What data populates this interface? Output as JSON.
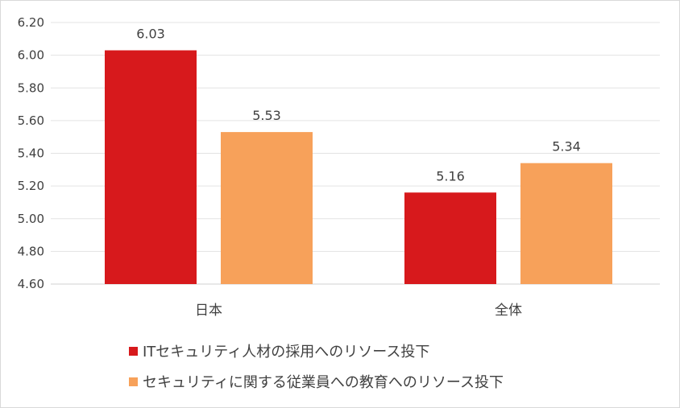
{
  "chart_data": {
    "type": "bar",
    "categories": [
      "日本",
      "全体"
    ],
    "series": [
      {
        "name": "ITセキュリティ人材の採用へのリソース投下",
        "values": [
          6.03,
          5.16
        ],
        "color": "#d7191c"
      },
      {
        "name": "セキュリティに関する従業員への教育へのリソース投下",
        "values": [
          5.53,
          5.34
        ],
        "color": "#f7a15a"
      }
    ],
    "data_labels": [
      [
        "6.03",
        "5.16"
      ],
      [
        "5.53",
        "5.34"
      ]
    ],
    "y_ticks": [
      "4.60",
      "4.80",
      "5.00",
      "5.20",
      "5.40",
      "5.60",
      "5.80",
      "6.00",
      "6.20"
    ],
    "ylim": [
      4.6,
      6.2
    ],
    "grid": true,
    "legend_position": "bottom",
    "title": "",
    "xlabel": "",
    "ylabel": ""
  }
}
